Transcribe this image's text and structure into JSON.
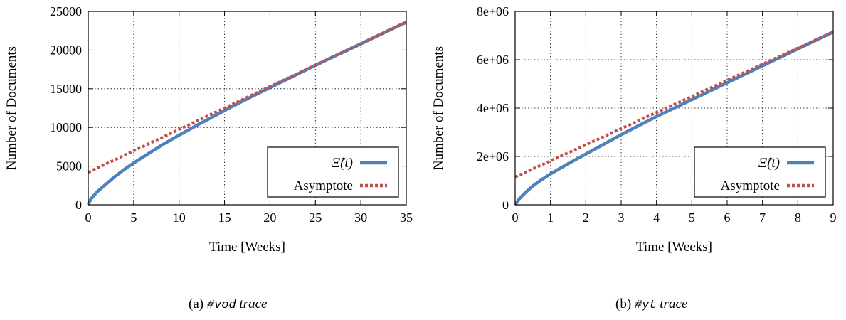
{
  "chart_data": [
    {
      "type": "line",
      "xlabel": "Time [Weeks]",
      "ylabel": "Number of Documents",
      "xlim": [
        0,
        35
      ],
      "ylim": [
        0,
        25000
      ],
      "xticks": [
        "0",
        "5",
        "10",
        "15",
        "20",
        "25",
        "30",
        "35"
      ],
      "yticks": [
        "0",
        "5000",
        "10000",
        "15000",
        "20000",
        "25000"
      ],
      "grid": true,
      "legend_position": "bottom-right",
      "series": [
        {
          "name": "Ξ̂(t)",
          "style": "solid",
          "color": "#4f81bd",
          "x": [
            0,
            0.25,
            0.5,
            1,
            2,
            3,
            4,
            5,
            6,
            8,
            10,
            12,
            14,
            16,
            18,
            20,
            22,
            24,
            26,
            28,
            30,
            32,
            35
          ],
          "y": [
            0,
            650,
            1050,
            1700,
            2700,
            3700,
            4600,
            5400,
            6150,
            7650,
            9000,
            10300,
            11550,
            12800,
            14000,
            15150,
            16300,
            17450,
            18600,
            19700,
            20800,
            21950,
            23600
          ]
        },
        {
          "name": "Asymptote",
          "style": "dashed",
          "color": "#c0504d",
          "x": [
            0,
            35
          ],
          "y": [
            4200,
            23600
          ]
        }
      ],
      "caption": {
        "prefix": "(a) ",
        "tag": "#vod",
        "suffix": " trace"
      }
    },
    {
      "type": "line",
      "xlabel": "Time [Weeks]",
      "ylabel": "Number of Documents",
      "xlim": [
        0,
        9
      ],
      "ylim": [
        0,
        8000000
      ],
      "xticks": [
        "0",
        "1",
        "2",
        "3",
        "4",
        "5",
        "6",
        "7",
        "8",
        "9"
      ],
      "yticks": [
        "0",
        "2e+06",
        "4e+06",
        "6e+06",
        "8e+06"
      ],
      "grid": true,
      "legend_position": "bottom-right",
      "series": [
        {
          "name": "Ξ̂(t)",
          "style": "solid",
          "color": "#4f81bd",
          "x": [
            0,
            0.1,
            0.25,
            0.5,
            0.75,
            1,
            1.5,
            2,
            2.5,
            3,
            3.5,
            4,
            4.5,
            5,
            5.5,
            6,
            6.5,
            7,
            7.5,
            8,
            8.5,
            9
          ],
          "y": [
            0,
            220000,
            450000,
            780000,
            1040000,
            1280000,
            1700000,
            2100000,
            2500000,
            2900000,
            3280000,
            3650000,
            4000000,
            4350000,
            4700000,
            5050000,
            5400000,
            5750000,
            6100000,
            6450000,
            6800000,
            7150000
          ]
        },
        {
          "name": "Asymptote",
          "style": "dashed",
          "color": "#c0504d",
          "x": [
            0,
            9
          ],
          "y": [
            1150000,
            7150000
          ]
        }
      ],
      "caption": {
        "prefix": "(b) ",
        "tag": "#yt",
        "suffix": " trace"
      }
    }
  ]
}
